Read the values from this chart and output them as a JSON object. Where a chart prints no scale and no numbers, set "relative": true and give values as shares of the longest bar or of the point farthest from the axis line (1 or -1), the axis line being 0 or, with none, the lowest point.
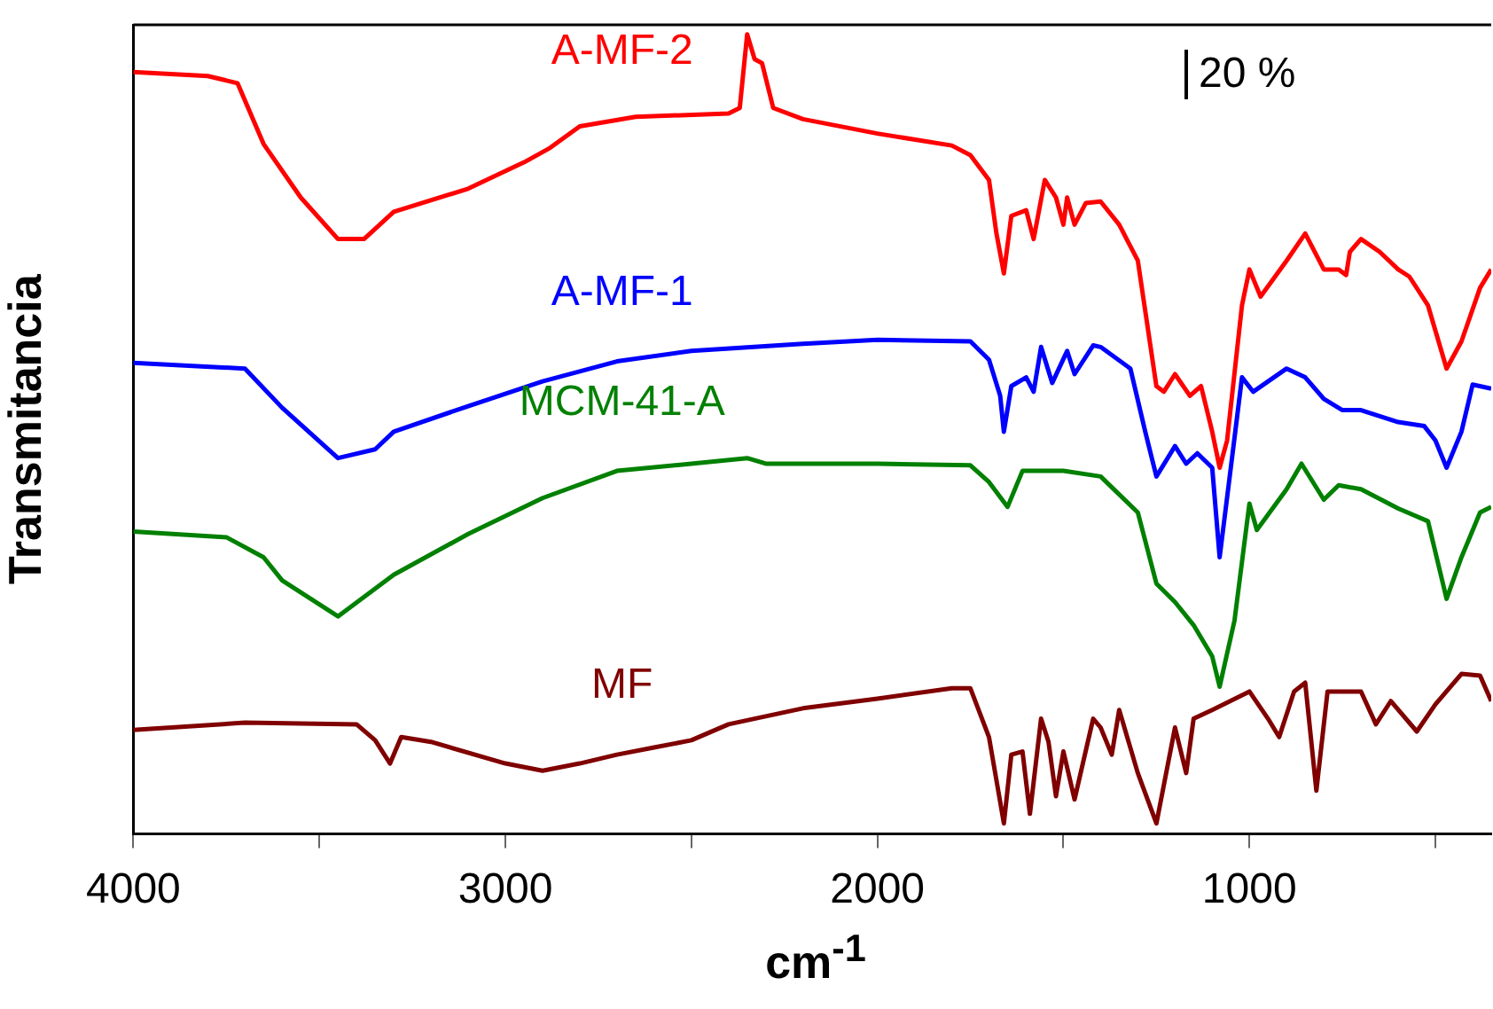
{
  "chart_data": {
    "type": "line",
    "xlabel": "cm$^{-1}$",
    "ylabel": "Transmitancia",
    "relative": true,
    "marker": "none",
    "line_style": "solid",
    "grid": false,
    "legend": false,
    "xlim": [
      4000,
      350
    ],
    "xticks": [
      4000,
      {
        "value": 3500,
        "label": null
      },
      3000,
      {
        "value": 2500,
        "label": null
      },
      2000,
      {
        "value": 1500,
        "label": null
      },
      1000,
      {
        "value": 500,
        "label": null
      }
    ],
    "annotations": [
      "20 %"
    ],
    "series": [
      {
        "name": "A-MF-2",
        "color": "#ff0000",
        "x": [
          4000,
          3800,
          3720,
          3650,
          3550,
          3450,
          3380,
          3300,
          3100,
          2950,
          2880,
          2800,
          2650,
          2400,
          2370,
          2350,
          2330,
          2310,
          2280,
          2200,
          2000,
          1800,
          1750,
          1700,
          1680,
          1660,
          1640,
          1600,
          1580,
          1550,
          1520,
          1500,
          1490,
          1470,
          1440,
          1400,
          1350,
          1300,
          1250,
          1230,
          1200,
          1160,
          1130,
          1100,
          1080,
          1060,
          1020,
          1000,
          970,
          900,
          850,
          800,
          760,
          740,
          730,
          700,
          650,
          600,
          570,
          520,
          470,
          430,
          380,
          350
        ],
        "values": [
          0.953,
          0.948,
          0.939,
          0.863,
          0.796,
          0.744,
          0.744,
          0.778,
          0.807,
          0.84,
          0.858,
          0.885,
          0.897,
          0.901,
          0.908,
          1.0,
          0.969,
          0.964,
          0.908,
          0.894,
          0.876,
          0.861,
          0.849,
          0.818,
          0.751,
          0.701,
          0.773,
          0.78,
          0.744,
          0.818,
          0.796,
          0.762,
          0.796,
          0.762,
          0.789,
          0.791,
          0.762,
          0.717,
          0.56,
          0.553,
          0.575,
          0.548,
          0.56,
          0.503,
          0.458,
          0.492,
          0.661,
          0.706,
          0.672,
          0.717,
          0.751,
          0.706,
          0.706,
          0.699,
          0.728,
          0.744,
          0.728,
          0.706,
          0.697,
          0.661,
          0.582,
          0.616,
          0.683,
          0.706
        ]
      },
      {
        "name": "A-MF-1",
        "color": "#0000ff",
        "x": [
          4000,
          3700,
          3600,
          3450,
          3350,
          3300,
          3100,
          2900,
          2700,
          2500,
          2200,
          2000,
          1750,
          1700,
          1670,
          1660,
          1640,
          1600,
          1580,
          1560,
          1530,
          1490,
          1470,
          1420,
          1400,
          1320,
          1280,
          1250,
          1200,
          1170,
          1140,
          1100,
          1080,
          1050,
          1020,
          990,
          900,
          850,
          800,
          750,
          700,
          600,
          530,
          500,
          470,
          430,
          400,
          350
        ],
        "values": [
          0.589,
          0.582,
          0.533,
          0.47,
          0.481,
          0.503,
          0.535,
          0.566,
          0.591,
          0.604,
          0.613,
          0.618,
          0.616,
          0.593,
          0.548,
          0.503,
          0.56,
          0.571,
          0.553,
          0.609,
          0.564,
          0.604,
          0.575,
          0.611,
          0.609,
          0.582,
          0.503,
          0.447,
          0.485,
          0.463,
          0.476,
          0.458,
          0.346,
          0.458,
          0.571,
          0.553,
          0.582,
          0.571,
          0.544,
          0.53,
          0.53,
          0.515,
          0.51,
          0.492,
          0.458,
          0.503,
          0.562,
          0.557
        ]
      },
      {
        "name": "MCM-41-A",
        "color": "#008000",
        "x": [
          4000,
          3750,
          3650,
          3600,
          3450,
          3300,
          3100,
          2900,
          2700,
          2500,
          2350,
          2300,
          2000,
          1750,
          1700,
          1650,
          1610,
          1500,
          1400,
          1300,
          1250,
          1200,
          1150,
          1100,
          1080,
          1040,
          1000,
          980,
          900,
          860,
          800,
          760,
          700,
          600,
          520,
          470,
          430,
          380,
          350
        ],
        "values": [
          0.378,
          0.371,
          0.346,
          0.317,
          0.272,
          0.324,
          0.375,
          0.42,
          0.454,
          0.463,
          0.47,
          0.463,
          0.463,
          0.461,
          0.44,
          0.409,
          0.454,
          0.454,
          0.447,
          0.402,
          0.313,
          0.29,
          0.261,
          0.222,
          0.184,
          0.267,
          0.413,
          0.38,
          0.431,
          0.463,
          0.418,
          0.436,
          0.431,
          0.407,
          0.391,
          0.294,
          0.346,
          0.402,
          0.409
        ]
      },
      {
        "name": "MF",
        "color": "#800000",
        "x": [
          4000,
          3700,
          3400,
          3350,
          3310,
          3280,
          3200,
          3000,
          2900,
          2800,
          2700,
          2600,
          2500,
          2400,
          2200,
          2000,
          1800,
          1750,
          1700,
          1660,
          1640,
          1610,
          1590,
          1560,
          1540,
          1520,
          1500,
          1470,
          1420,
          1400,
          1370,
          1350,
          1300,
          1250,
          1200,
          1170,
          1150,
          1100,
          1000,
          950,
          920,
          880,
          850,
          820,
          790,
          700,
          660,
          620,
          550,
          500,
          430,
          380,
          350
        ],
        "values": [
          0.13,
          0.139,
          0.137,
          0.117,
          0.088,
          0.121,
          0.115,
          0.088,
          0.079,
          0.088,
          0.099,
          0.108,
          0.117,
          0.137,
          0.157,
          0.169,
          0.182,
          0.182,
          0.121,
          0.013,
          0.099,
          0.103,
          0.025,
          0.144,
          0.115,
          0.047,
          0.103,
          0.043,
          0.144,
          0.133,
          0.099,
          0.155,
          0.076,
          0.013,
          0.133,
          0.076,
          0.144,
          0.155,
          0.178,
          0.144,
          0.121,
          0.178,
          0.189,
          0.054,
          0.178,
          0.178,
          0.137,
          0.166,
          0.128,
          0.162,
          0.2,
          0.198,
          0.166
        ]
      }
    ]
  }
}
